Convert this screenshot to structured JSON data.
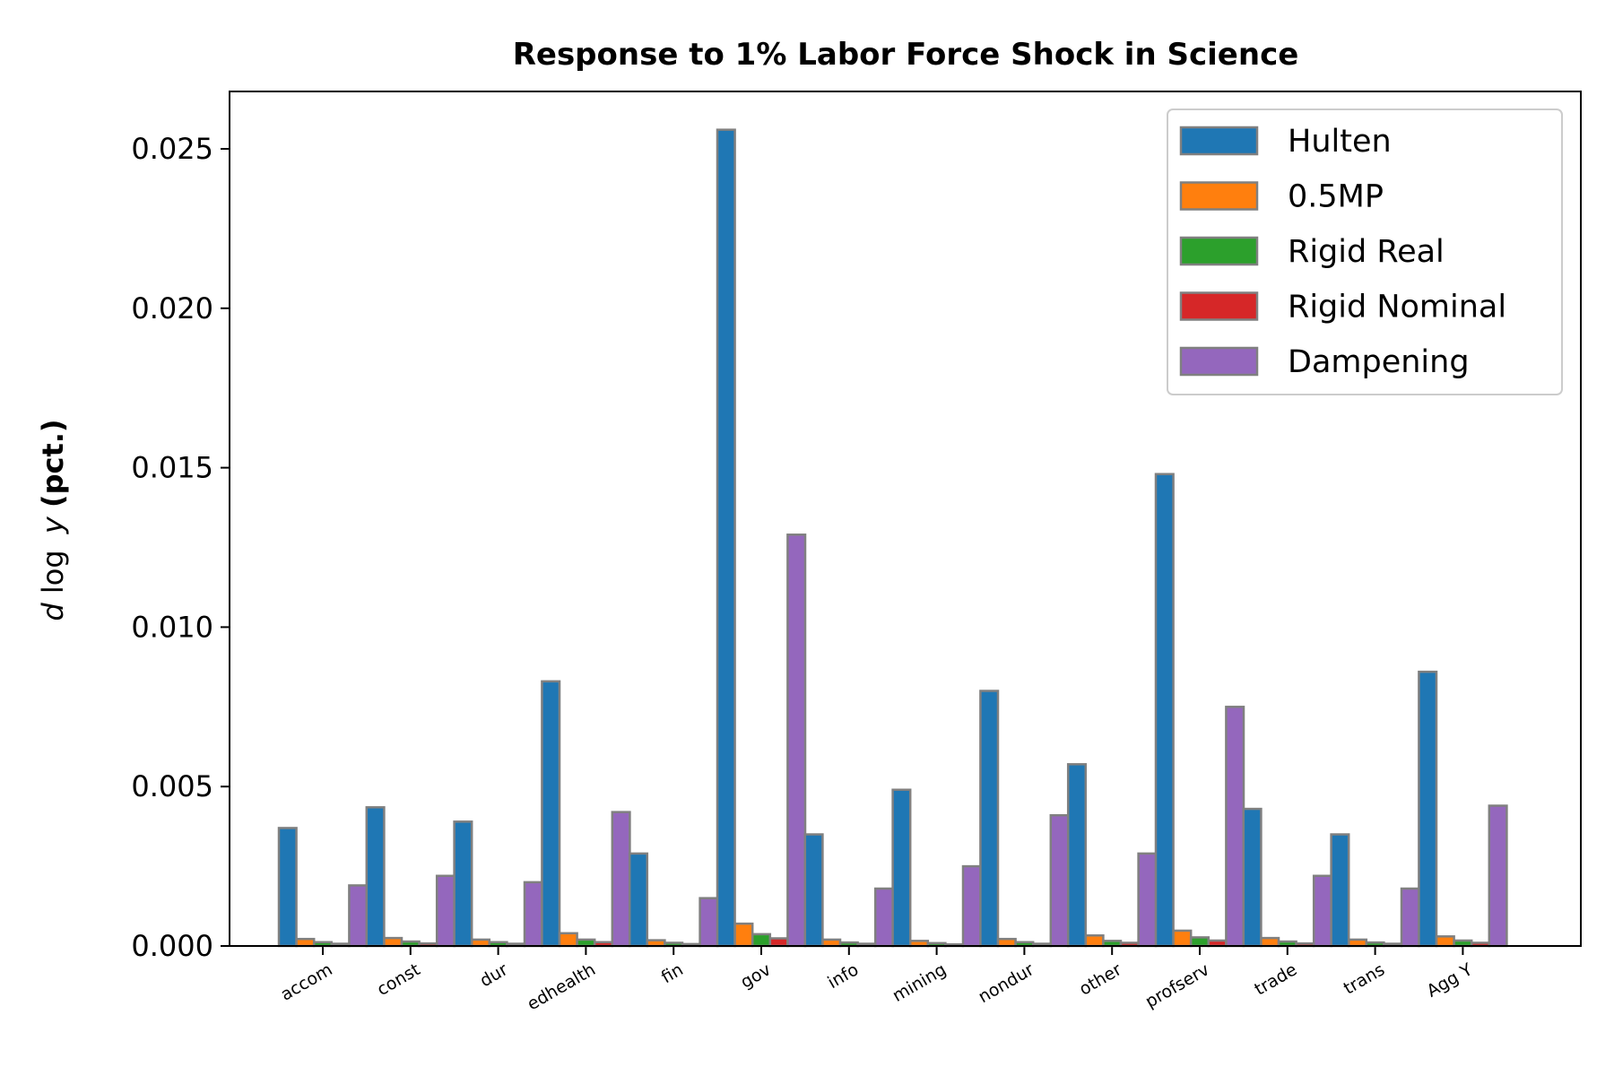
{
  "chart_data": {
    "type": "bar",
    "title": "Response to 1% Labor Force Shock in Science",
    "ylabel": {
      "prefix": "d",
      "func": "log",
      "var": "y",
      "suffix": " (pct.)"
    },
    "xlabel": "",
    "ylim": [
      0,
      0.0268
    ],
    "yticks": [
      {
        "value": 0.0,
        "label": "0.000"
      },
      {
        "value": 0.005,
        "label": "0.005"
      },
      {
        "value": 0.01,
        "label": "0.010"
      },
      {
        "value": 0.015,
        "label": "0.015"
      },
      {
        "value": 0.02,
        "label": "0.020"
      },
      {
        "value": 0.025,
        "label": "0.025"
      }
    ],
    "grid": false,
    "legend_position": "top-right",
    "categories": [
      "accom",
      "const",
      "dur",
      "edhealth",
      "fin",
      "gov",
      "info",
      "mining",
      "nondur",
      "other",
      "profserv",
      "trade",
      "trans",
      "Agg Y"
    ],
    "series": [
      {
        "name": "Hulten",
        "color": "#1f77b4",
        "values": [
          0.0037,
          0.00435,
          0.0039,
          0.0083,
          0.0029,
          0.0256,
          0.0035,
          0.0049,
          0.008,
          0.0057,
          0.0148,
          0.0043,
          0.0035,
          0.0086
        ]
      },
      {
        "name": "0.5MP",
        "color": "#ff7f0e",
        "values": [
          0.00022,
          0.00025,
          0.0002,
          0.0004,
          0.00018,
          0.0007,
          0.0002,
          0.00016,
          0.00022,
          0.00033,
          0.00048,
          0.00025,
          0.0002,
          0.0003
        ]
      },
      {
        "name": "Rigid Real",
        "color": "#2ca02c",
        "values": [
          0.00012,
          0.00014,
          0.00012,
          0.0002,
          0.0001,
          0.00037,
          0.00011,
          9e-05,
          0.00012,
          0.00016,
          0.00027,
          0.00014,
          0.00011,
          0.00017
        ]
      },
      {
        "name": "Rigid Nominal",
        "color": "#d62728",
        "values": [
          7e-05,
          8e-05,
          7e-05,
          0.00012,
          6e-05,
          0.00024,
          7e-05,
          5e-05,
          7e-05,
          0.0001,
          0.00017,
          8e-05,
          7e-05,
          0.0001
        ]
      },
      {
        "name": "Dampening",
        "color": "#9467bd",
        "values": [
          0.0019,
          0.0022,
          0.002,
          0.0042,
          0.0015,
          0.0129,
          0.0018,
          0.0025,
          0.0041,
          0.0029,
          0.0075,
          0.0022,
          0.0018,
          0.0044
        ]
      }
    ]
  }
}
